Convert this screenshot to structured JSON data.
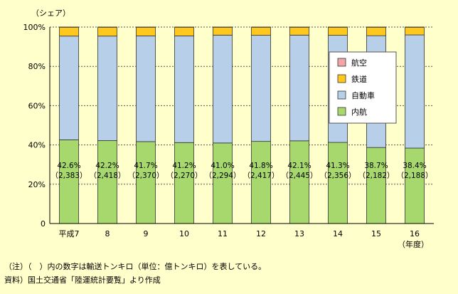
{
  "chart_data": {
    "type": "bar",
    "stacked": true,
    "ylabel": "（シェア）",
    "xlabel_unit": "（年度）",
    "ylim": [
      0,
      100
    ],
    "y_ticks": [
      "0",
      "20%",
      "40%",
      "60%",
      "80%",
      "100%"
    ],
    "categories": [
      "平成7",
      "8",
      "9",
      "10",
      "11",
      "12",
      "13",
      "14",
      "15",
      "16"
    ],
    "series": [
      {
        "name": "内航",
        "color": "#a6d86e",
        "values": [
          42.6,
          42.2,
          41.7,
          41.2,
          41.0,
          41.8,
          42.1,
          41.3,
          38.7,
          38.4
        ]
      },
      {
        "name": "自動車",
        "color": "#b8cfea",
        "values": [
          52.8,
          53.2,
          53.8,
          54.3,
          54.9,
          54.0,
          53.8,
          54.5,
          56.9,
          57.6
        ]
      },
      {
        "name": "鉄道",
        "color": "#ffc81e",
        "values": [
          4.5,
          4.5,
          4.4,
          4.4,
          4.0,
          4.1,
          4.0,
          4.1,
          4.3,
          3.9
        ]
      },
      {
        "name": "航空",
        "color": "#f4a6a6",
        "values": [
          0.1,
          0.1,
          0.1,
          0.1,
          0.1,
          0.1,
          0.1,
          0.1,
          0.1,
          0.1
        ]
      }
    ],
    "data_labels": [
      [
        "42.6%",
        "（2,383）"
      ],
      [
        "42.2%",
        "（2,418）"
      ],
      [
        "41.7%",
        "（2,370）"
      ],
      [
        "41.2%",
        "（2,270）"
      ],
      [
        "41.0%",
        "（2,294）"
      ],
      [
        "41.8%",
        "（2,417）"
      ],
      [
        "42.1%",
        "（2,445）"
      ],
      [
        "41.3%",
        "（2,356）"
      ],
      [
        "38.7%",
        "（2,182）"
      ],
      [
        "38.4%",
        "（2,188）"
      ]
    ],
    "legend": {
      "placement": "right",
      "entries": [
        {
          "name": "航空",
          "color": "#f4a6a6"
        },
        {
          "name": "鉄道",
          "color": "#ffc81e"
        },
        {
          "name": "自動車",
          "color": "#b8cfea"
        },
        {
          "name": "内航",
          "color": "#a6d86e"
        }
      ]
    },
    "grid": true
  },
  "notes": {
    "note1": "（注）（　）内の数字は輸送トンキロ（単位：億トンキロ）を表している。",
    "source": "資料）国土交通省「陸運統計要覧」より作成"
  }
}
